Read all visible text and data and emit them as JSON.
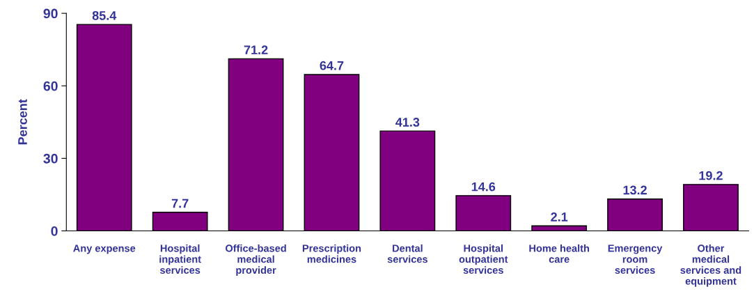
{
  "chart_data": {
    "type": "bar",
    "ylabel": "Percent",
    "categories": [
      "Any expense",
      "Hospital\ninpatient\nservices",
      "Office-based\nmedical\nprovider",
      "Prescription\nmedicines",
      "Dental\nservices",
      "Hospital\noutpatient\nservices",
      "Home health\ncare",
      "Emergency\nroom\nservices",
      "Other\nmedical\nservices and\nequipment"
    ],
    "values": [
      85.4,
      7.7,
      71.2,
      64.7,
      41.3,
      14.6,
      2.1,
      13.2,
      19.2
    ],
    "color": "#800080",
    "ylim": [
      0,
      90
    ],
    "yticks": [
      0,
      30,
      60,
      90
    ],
    "data_labels": true,
    "grid": false
  }
}
